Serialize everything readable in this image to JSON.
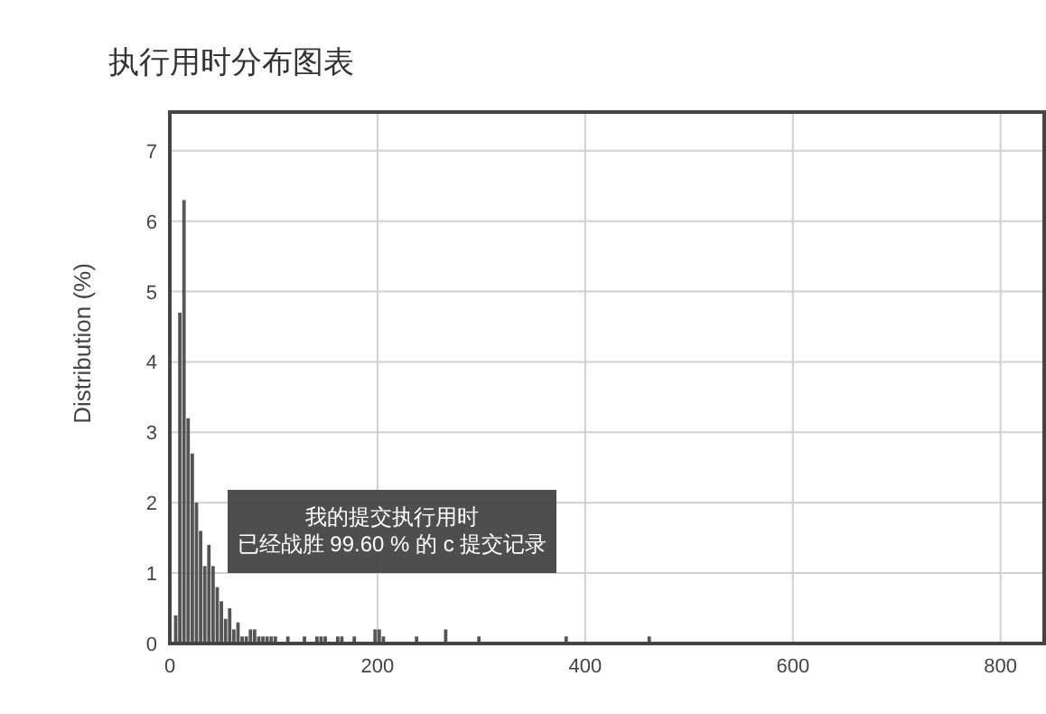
{
  "chart_data": {
    "type": "histogram",
    "title": "执行用时分布图表",
    "ylabel": "Distribution (%)",
    "bins": [
      4,
      8,
      12,
      16,
      20,
      24,
      28,
      32,
      36,
      40,
      44,
      48,
      52,
      56,
      60,
      64,
      68,
      72,
      76,
      80,
      84,
      88,
      92,
      96,
      100,
      104,
      112,
      116,
      128,
      132,
      140,
      144,
      148,
      152,
      160,
      164,
      168,
      176,
      180,
      196,
      200,
      204,
      208,
      236,
      240,
      264,
      268,
      296,
      300,
      380,
      384,
      460,
      464
    ],
    "values": [
      0.4,
      4.7,
      6.3,
      3.2,
      2.7,
      2.0,
      1.6,
      1.1,
      1.4,
      1.1,
      0.8,
      0.6,
      0.35,
      0.5,
      0.2,
      0.3,
      0.1,
      0.1,
      0.2,
      0.2,
      0.1,
      0.1,
      0.1,
      0.1,
      0.1,
      0,
      0.1,
      0,
      0.1,
      0,
      0.1,
      0.1,
      0.1,
      0,
      0.1,
      0.1,
      0,
      0.1,
      0,
      0.2,
      0.2,
      0.1,
      0,
      0.1,
      0,
      0.2,
      0,
      0.1,
      0,
      0.1,
      0,
      0.1
    ],
    "color": "#555555",
    "xlim": [
      0,
      842
    ],
    "ylim": [
      0,
      7.55
    ],
    "xticks": [
      0,
      200,
      400,
      600,
      800
    ],
    "yticks": [
      0,
      1,
      2,
      3,
      4,
      5,
      6,
      7
    ],
    "grid": true,
    "annotations": [
      "我的提交执行用时",
      "已经战胜 99.60 % 的 c 提交记录"
    ]
  }
}
